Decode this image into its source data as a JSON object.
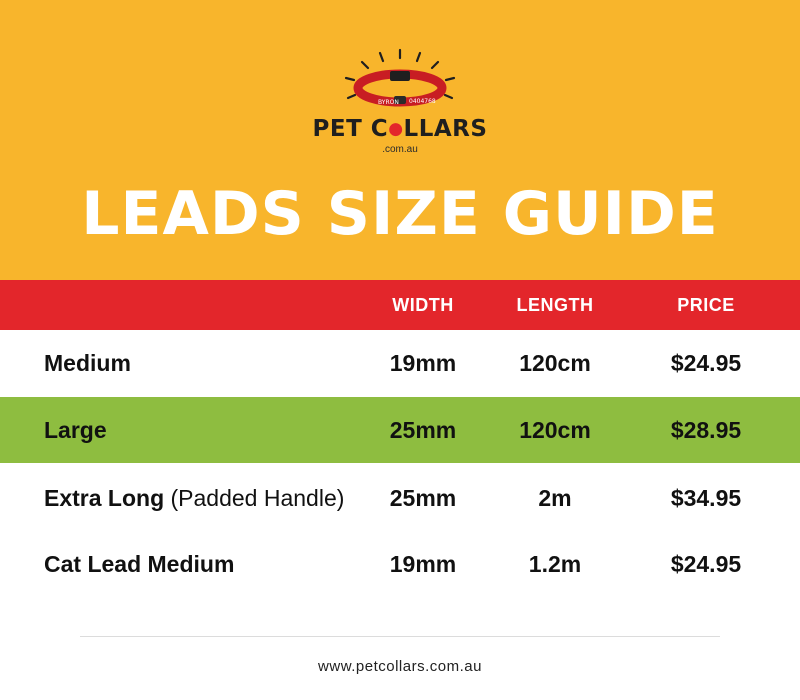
{
  "logo": {
    "collar_name": "BYRON",
    "collar_phone": "0404768",
    "brand_pet": "PET C",
    "brand_collars": "LLARS",
    "domain": ".com.au"
  },
  "title": "LEADS SIZE GUIDE",
  "table": {
    "headers": {
      "width": "WIDTH",
      "length": "LENGTH",
      "price": "PRICE"
    },
    "rows": [
      {
        "name": "Medium",
        "note": "",
        "width": "19mm",
        "length": "120cm",
        "price": "$24.95"
      },
      {
        "name": "Large",
        "note": "",
        "width": "25mm",
        "length": "120cm",
        "price": "$28.95"
      },
      {
        "name": "Extra Long",
        "note": " (Padded Handle)",
        "width": "25mm",
        "length": "2m",
        "price": "$34.95"
      },
      {
        "name": "Cat Lead Medium",
        "note": "",
        "width": "19mm",
        "length": "1.2m",
        "price": "$24.95"
      }
    ]
  },
  "footer": "www.petcollars.com.au",
  "colors": {
    "header_bg": "#f8b52c",
    "table_header_bg": "#e3262b",
    "highlight_row_bg": "#8ebd40",
    "text": "#111111"
  }
}
